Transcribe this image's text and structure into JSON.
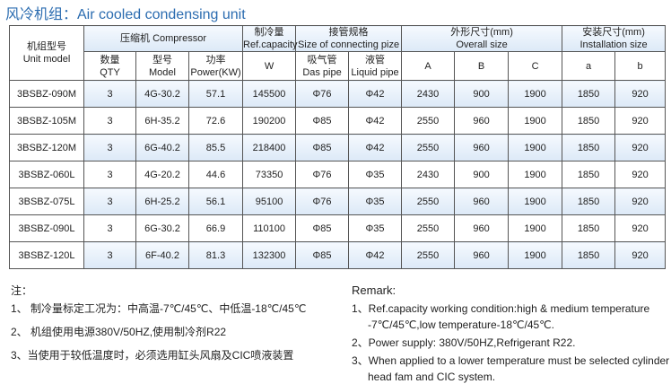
{
  "title": "风冷机组：Air cooled condensing unit",
  "header": {
    "unit_model_cn": "机组型号",
    "unit_model_en": "Unit model",
    "compressor": "压缩机 Compressor",
    "capacity_cn": "制冷量",
    "capacity_en": "Ref.capacity",
    "pipe_cn": "接管规格",
    "pipe_en": "Size of connecting pize",
    "overall_cn": "外形尺寸(mm)",
    "overall_en": "Overall size",
    "install_cn": "安装尺寸(mm)",
    "install_en": "Installation size",
    "qty_cn": "数量",
    "qty_en": "QTY",
    "model_cn": "型号",
    "model_en": "Model",
    "power_cn": "功率",
    "power_en": "Power(KW)",
    "w": "W",
    "das_cn": "吸气管",
    "das_en": "Das pipe",
    "liquid_cn": "液管",
    "liquid_en": "Liquid pipe",
    "A": "A",
    "B": "B",
    "C": "C",
    "a": "a",
    "b": "b"
  },
  "rows": [
    [
      "3BSBZ-090M",
      "3",
      "4G-30.2",
      "57.1",
      "145500",
      "Φ76",
      "Φ42",
      "2430",
      "900",
      "1900",
      "1850",
      "920"
    ],
    [
      "3BSBZ-105M",
      "3",
      "6H-35.2",
      "72.6",
      "190200",
      "Φ85",
      "Φ42",
      "2550",
      "960",
      "1900",
      "1850",
      "920"
    ],
    [
      "3BSBZ-120M",
      "3",
      "6G-40.2",
      "85.5",
      "218400",
      "Φ85",
      "Φ42",
      "2550",
      "960",
      "1900",
      "1850",
      "920"
    ],
    [
      "3BSBZ-060L",
      "3",
      "4G-20.2",
      "44.6",
      "73350",
      "Φ76",
      "Φ35",
      "2430",
      "900",
      "1900",
      "1850",
      "920"
    ],
    [
      "3BSBZ-075L",
      "3",
      "6H-25.2",
      "56.1",
      "95100",
      "Φ76",
      "Φ35",
      "2550",
      "960",
      "1900",
      "1850",
      "920"
    ],
    [
      "3BSBZ-090L",
      "3",
      "6G-30.2",
      "66.9",
      "110100",
      "Φ85",
      "Φ35",
      "2550",
      "960",
      "1900",
      "1850",
      "920"
    ],
    [
      "3BSBZ-120L",
      "3",
      "6F-40.2",
      "81.3",
      "132300",
      "Φ85",
      "Φ42",
      "2550",
      "960",
      "1900",
      "1850",
      "920"
    ]
  ],
  "notes_cn": {
    "heading": "注：",
    "items": [
      "1、 制冷量标定工况为：中高温-7℃/45℃、中低温-18℃/45℃",
      "2、 机组使用电源380V/50HZ,使用制冷剂R22",
      "3、当使用于较低温度时，必须选用缸头风扇及CIC喷液装置"
    ]
  },
  "notes_en": {
    "heading": "Remark:",
    "items": [
      "1、Ref.capacity working condition:high & medium temperature",
      "   -7℃/45℃,low temperature-18℃/45℃.",
      "2、Power supply: 380V/50HZ,Refrigerant R22.",
      "3、When applied to a lower temperature must be selected cylinder",
      "   head fam and CIC system."
    ]
  }
}
